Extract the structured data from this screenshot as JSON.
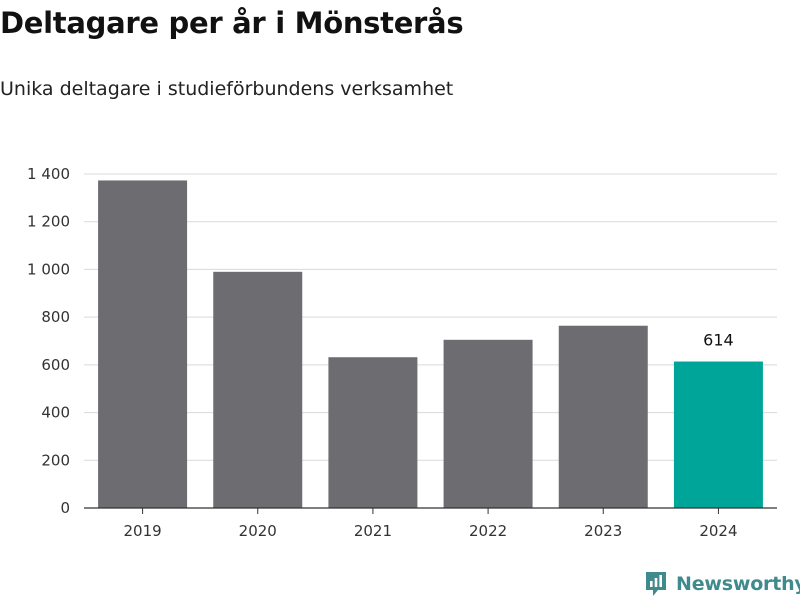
{
  "header": {
    "title": "Deltagare per år i Mönsterås",
    "subtitle": "Unika deltagare i studieförbundens verksamhet"
  },
  "brand": {
    "name": "Newsworthy",
    "logo_icon": "newsworthy-logo-icon",
    "color": "#3f8a8c"
  },
  "colors": {
    "bar": "#6d6c71",
    "highlight": "#00a59a",
    "grid": "#d9d9d9",
    "axis": "#333333"
  },
  "chart_data": {
    "type": "bar",
    "title": "Deltagare per år i Mönsterås",
    "subtitle": "Unika deltagare i studieförbundens verksamhet",
    "xlabel": "",
    "ylabel": "",
    "categories": [
      "2019",
      "2020",
      "2021",
      "2022",
      "2023",
      "2024"
    ],
    "values": [
      1373,
      990,
      632,
      705,
      764,
      614
    ],
    "highlight_index": 5,
    "data_labels": [
      {
        "index": 5,
        "text": "614"
      }
    ],
    "ylim": [
      0,
      1400
    ],
    "yticks": [
      0,
      200,
      400,
      600,
      800,
      1000,
      1200,
      1400
    ],
    "ytick_labels": [
      "0",
      "200",
      "400",
      "600",
      "800",
      "1 000",
      "1 200",
      "1 400"
    ],
    "grid": true,
    "legend": "none"
  }
}
